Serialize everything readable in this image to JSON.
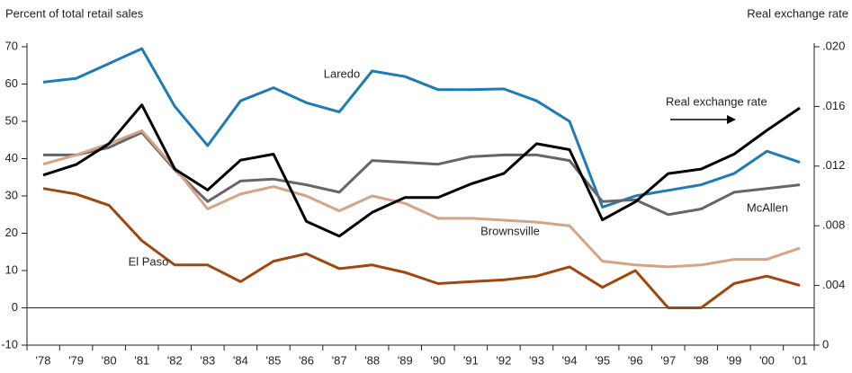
{
  "chart_data": {
    "type": "line",
    "y_label": "Percent of total retail sales",
    "y2_label": "Real exchange rate",
    "categories": [
      "'78",
      "'79",
      "'80",
      "'81",
      "'82",
      "'83",
      "'84",
      "'85",
      "'86",
      "'87",
      "'88",
      "'89",
      "'90",
      "'91",
      "'92",
      "'93",
      "'94",
      "'95",
      "'96",
      "'97",
      "'98",
      "'99",
      "'00",
      "'01"
    ],
    "ylim": [
      -10,
      70
    ],
    "yticks": [
      -10,
      0,
      10,
      20,
      30,
      40,
      50,
      60,
      70
    ],
    "y2lim": [
      0,
      0.02
    ],
    "y2ticks": [
      0,
      {
        "value": 0.004,
        "label": ".004"
      },
      {
        "value": 0.008,
        "label": ".008"
      },
      {
        "value": 0.012,
        "label": ".012"
      },
      {
        "value": 0.016,
        "label": ".016"
      },
      {
        "value": 0.02,
        "label": ".020"
      }
    ],
    "grid": false,
    "series": [
      {
        "name": "Laredo",
        "color": "#1f7bb6",
        "values": [
          60.5,
          61.5,
          65.5,
          69.5,
          54,
          43.5,
          55.5,
          59,
          55,
          52.5,
          63.5,
          62,
          58.5,
          58.5,
          58.7,
          55.5,
          50,
          27,
          30,
          31.5,
          33,
          36,
          42,
          39
        ]
      },
      {
        "name": "McAllen",
        "color": "#666666",
        "values": [
          41,
          41,
          43,
          47,
          37,
          28.5,
          34,
          34.5,
          33,
          31,
          39.5,
          39,
          38.5,
          40.5,
          41,
          41,
          39.5,
          28.5,
          29,
          25,
          26.5,
          31,
          32,
          33
        ]
      },
      {
        "name": "Brownsville",
        "color": "#d4a487",
        "values": [
          38.5,
          41,
          44,
          47.5,
          37.5,
          26.5,
          30.5,
          32.5,
          30,
          26,
          30,
          28,
          24,
          24,
          23.5,
          23,
          22,
          12.5,
          11.5,
          11,
          11.5,
          13,
          13,
          16
        ]
      },
      {
        "name": "El Paso",
        "color": "#a0470f",
        "values": [
          32,
          30.5,
          27.5,
          18,
          11.5,
          11.5,
          7,
          12.5,
          14.5,
          10.5,
          11.5,
          9.5,
          6.5,
          7,
          7.5,
          8.5,
          11,
          5.5,
          10,
          0,
          0,
          6.5,
          8.5,
          6
        ]
      },
      {
        "name": "Real exchange rate",
        "color": "#000000",
        "axis": "y2",
        "values": [
          0.0114,
          0.0121,
          0.0135,
          0.0161,
          0.0118,
          0.0104,
          0.0124,
          0.0128,
          0.0083,
          0.0073,
          0.0089,
          0.0099,
          0.0099,
          0.0108,
          0.0115,
          0.0135,
          0.0131,
          0.0084,
          0.0096,
          0.0115,
          0.0118,
          0.0128,
          0.0144,
          0.0159
        ]
      }
    ]
  }
}
